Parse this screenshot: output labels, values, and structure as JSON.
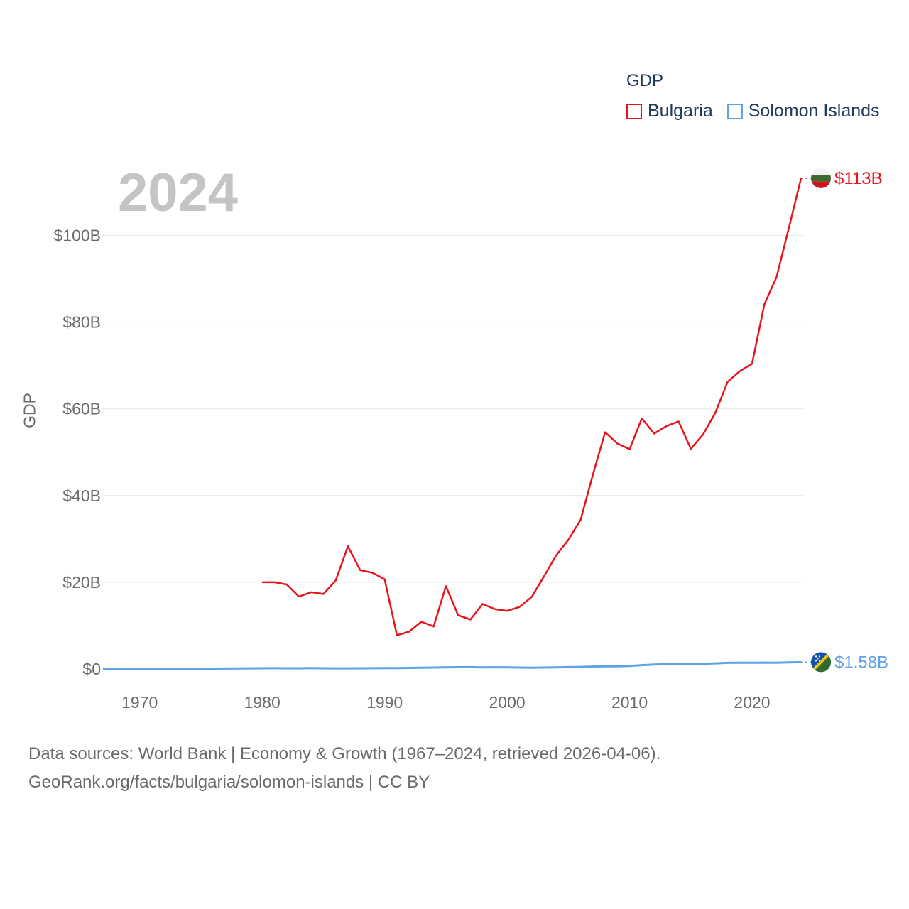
{
  "chart_data": {
    "type": "line",
    "title": "GDP",
    "year_label": "2024",
    "xlabel": "",
    "ylabel": "GDP",
    "xlim": [
      1967,
      2024
    ],
    "ylim": [
      0,
      115
    ],
    "x_ticks": [
      1970,
      1980,
      1990,
      2000,
      2010,
      2020
    ],
    "y_ticks": [
      0,
      20,
      40,
      60,
      80,
      100
    ],
    "y_tick_labels": [
      "$0",
      "$20B",
      "$40B",
      "$60B",
      "$80B",
      "$100B"
    ],
    "grid": true,
    "legend_position": "top-right",
    "units": "billion US$",
    "series": [
      {
        "name": "Bulgaria",
        "color": "#e8141c",
        "end_label": "$113B",
        "flag_icon": "bulgaria-flag-icon",
        "x": [
          1980,
          1981,
          1982,
          1983,
          1984,
          1985,
          1986,
          1987,
          1988,
          1989,
          1990,
          1991,
          1992,
          1993,
          1994,
          1995,
          1996,
          1997,
          1998,
          1999,
          2000,
          2001,
          2002,
          2003,
          2004,
          2005,
          2006,
          2007,
          2008,
          2009,
          2010,
          2011,
          2012,
          2013,
          2014,
          2015,
          2016,
          2017,
          2018,
          2019,
          2020,
          2021,
          2022,
          2023,
          2024
        ],
        "values": [
          20.0,
          20.0,
          19.5,
          16.7,
          17.7,
          17.3,
          20.4,
          28.3,
          22.8,
          22.2,
          20.7,
          7.8,
          8.6,
          10.9,
          9.8,
          19.1,
          12.4,
          11.4,
          15.0,
          13.8,
          13.4,
          14.3,
          16.6,
          21.3,
          26.2,
          29.8,
          34.4,
          44.8,
          54.6,
          52.0,
          50.7,
          57.8,
          54.3,
          56.0,
          57.1,
          50.8,
          54.1,
          59.1,
          66.2,
          68.7,
          70.4,
          84.1,
          90.4,
          101.7,
          113.2
        ]
      },
      {
        "name": "Solomon Islands",
        "color": "#5fa3e6",
        "end_label": "$1.58B",
        "flag_icon": "solomon-islands-flag-icon",
        "x": [
          1967,
          1968,
          1969,
          1970,
          1971,
          1972,
          1973,
          1974,
          1975,
          1976,
          1977,
          1978,
          1979,
          1980,
          1981,
          1982,
          1983,
          1984,
          1985,
          1986,
          1987,
          1988,
          1989,
          1990,
          1991,
          1992,
          1993,
          1994,
          1995,
          1996,
          1997,
          1998,
          1999,
          2000,
          2001,
          2002,
          2003,
          2004,
          2005,
          2006,
          2007,
          2008,
          2009,
          2010,
          2011,
          2012,
          2013,
          2014,
          2015,
          2016,
          2017,
          2018,
          2019,
          2020,
          2021,
          2022,
          2023,
          2024
        ],
        "values": [
          0.02,
          0.02,
          0.02,
          0.03,
          0.03,
          0.04,
          0.05,
          0.06,
          0.06,
          0.08,
          0.1,
          0.12,
          0.14,
          0.16,
          0.18,
          0.17,
          0.17,
          0.19,
          0.16,
          0.14,
          0.15,
          0.17,
          0.18,
          0.21,
          0.22,
          0.25,
          0.29,
          0.33,
          0.38,
          0.41,
          0.43,
          0.37,
          0.39,
          0.36,
          0.32,
          0.29,
          0.32,
          0.37,
          0.42,
          0.47,
          0.56,
          0.61,
          0.6,
          0.68,
          0.88,
          1.01,
          1.11,
          1.17,
          1.13,
          1.2,
          1.29,
          1.41,
          1.43,
          1.42,
          1.45,
          1.42,
          1.53,
          1.58
        ]
      }
    ]
  },
  "legend": {
    "title": "GDP",
    "items": [
      {
        "label": "Bulgaria",
        "color": "#e8141c"
      },
      {
        "label": "Solomon Islands",
        "color": "#5fa3e6"
      }
    ]
  },
  "footer": {
    "line1": "Data sources: World Bank | Economy & Growth (1967–2024, retrieved 2026-04-06).",
    "line2": "GeoRank.org/facts/bulgaria/solomon-islands | CC BY"
  }
}
